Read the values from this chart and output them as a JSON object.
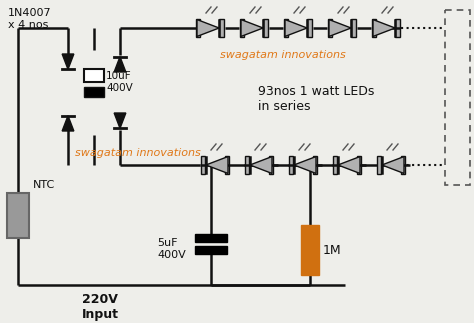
{
  "bg_color": "#eeeeea",
  "line_color": "#111111",
  "orange_color": "#e07818",
  "gray_led": "#b0b0b0",
  "dark_gray": "#555555",
  "resistor_color": "#d07010",
  "label_1n4007": "1N4007\nx 4 nos",
  "label_10uf": "10uF\n400V",
  "label_93nos": "93nos 1 watt LEDs\nin series",
  "label_5uf": "5uF\n400V",
  "label_1m": "1M",
  "label_ntc": "NTC",
  "label_220v": "220V\nInput",
  "watermark1": "swagatam innovations",
  "watermark2": "swagatam innovations"
}
